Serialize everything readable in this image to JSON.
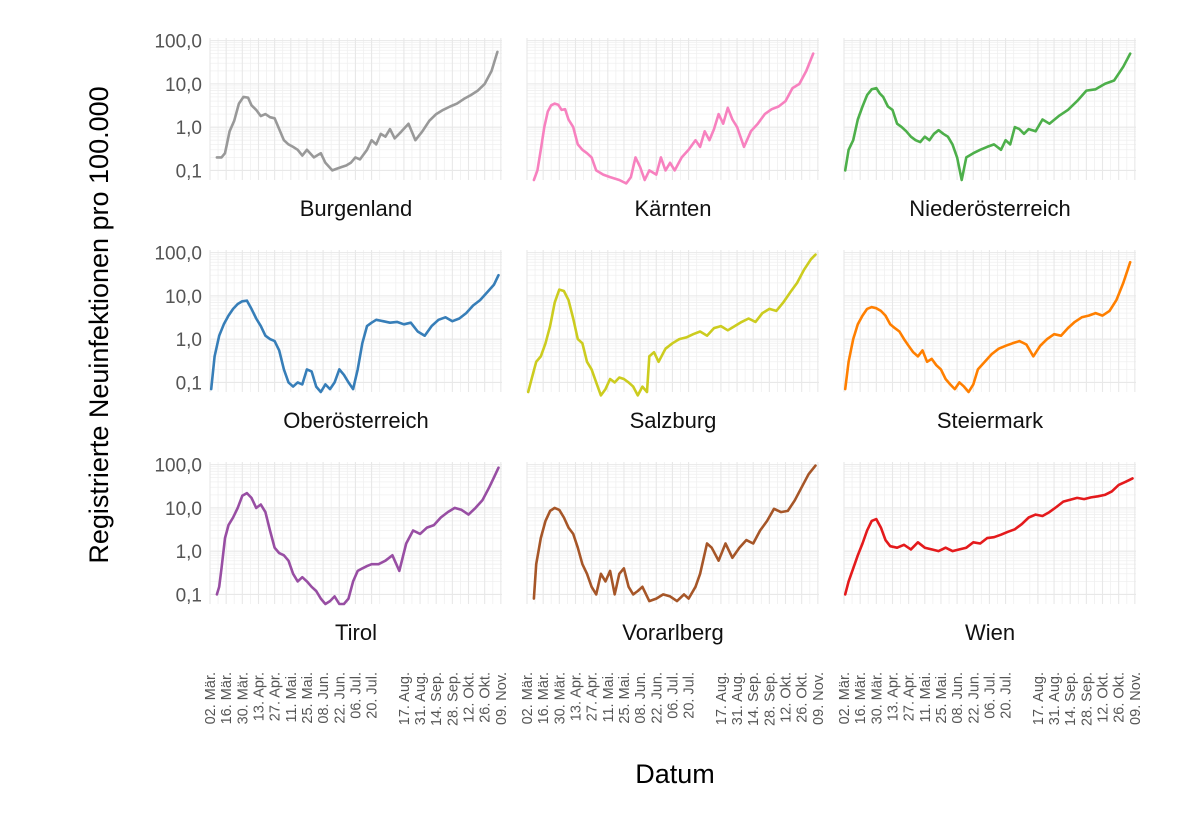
{
  "chart_data": {
    "type": "line",
    "facet": "small-multiples",
    "ylabel": "Registrierte Neuinfektionen pro 100.000",
    "xlabel": "Datum",
    "yscale": "log10",
    "ylim": [
      0.06,
      115
    ],
    "y_ticks": [
      0.1,
      1,
      10,
      100
    ],
    "y_tick_labels": [
      "0,1",
      "1,0",
      "10,0",
      "100,0"
    ],
    "x_range": [
      0,
      253
    ],
    "x_ticks": [
      {
        "day": 0,
        "label": "02. Mär."
      },
      {
        "day": 14,
        "label": "16. Mär."
      },
      {
        "day": 28,
        "label": "30. Mär."
      },
      {
        "day": 42,
        "label": "13. Apr."
      },
      {
        "day": 56,
        "label": "27. Apr."
      },
      {
        "day": 70,
        "label": "11. Mai."
      },
      {
        "day": 84,
        "label": "25. Mai."
      },
      {
        "day": 98,
        "label": "08. Jun."
      },
      {
        "day": 112,
        "label": "22. Jun."
      },
      {
        "day": 126,
        "label": "06. Jul."
      },
      {
        "day": 140,
        "label": "20. Jul."
      },
      {
        "day": 168,
        "label": "17. Aug."
      },
      {
        "day": 182,
        "label": "31. Aug."
      },
      {
        "day": 196,
        "label": "14. Sep."
      },
      {
        "day": 210,
        "label": "28. Sep."
      },
      {
        "day": 224,
        "label": "12. Okt."
      },
      {
        "day": 238,
        "label": "26. Okt."
      },
      {
        "day": 252,
        "label": "09. Nov."
      }
    ],
    "series": [
      {
        "name": "Burgenland",
        "color": "#999999",
        "x": [
          6,
          10,
          13,
          17,
          21,
          25,
          29,
          33,
          36,
          40,
          44,
          48,
          52,
          56,
          60,
          64,
          68,
          72,
          76,
          80,
          84,
          90,
          96,
          100,
          106,
          110,
          114,
          118,
          122,
          126,
          130,
          136,
          140,
          144,
          148,
          152,
          156,
          160,
          166,
          172,
          178,
          184,
          190,
          196,
          202,
          208,
          214,
          220,
          226,
          232,
          238,
          244,
          249
        ],
        "y": [
          0.2,
          0.2,
          0.25,
          0.8,
          1.4,
          3.5,
          5,
          4.8,
          3.2,
          2.5,
          1.8,
          2,
          1.7,
          1.6,
          0.9,
          0.5,
          0.4,
          0.35,
          0.3,
          0.22,
          0.3,
          0.2,
          0.25,
          0.15,
          0.1,
          0.11,
          0.12,
          0.13,
          0.15,
          0.2,
          0.18,
          0.3,
          0.5,
          0.4,
          0.7,
          0.6,
          0.9,
          0.55,
          0.8,
          1.2,
          0.5,
          0.8,
          1.4,
          2,
          2.5,
          3,
          3.5,
          4.5,
          5.5,
          7,
          10,
          20,
          55
        ]
      },
      {
        "name": "Kärnten",
        "color": "#F781BF",
        "x": [
          6,
          9,
          12,
          15,
          18,
          21,
          24,
          27,
          30,
          33,
          36,
          40,
          44,
          48,
          52,
          56,
          60,
          66,
          72,
          80,
          86,
          90,
          94,
          98,
          102,
          106,
          112,
          116,
          120,
          124,
          128,
          134,
          140,
          146,
          150,
          154,
          158,
          162,
          166,
          170,
          174,
          178,
          182,
          188,
          194,
          200,
          206,
          212,
          218,
          224,
          230,
          236,
          242,
          248
        ],
        "y": [
          0.06,
          0.1,
          0.3,
          1,
          2.3,
          3.2,
          3.5,
          3.3,
          2.5,
          2.6,
          1.5,
          1,
          0.4,
          0.3,
          0.25,
          0.2,
          0.1,
          0.08,
          0.07,
          0.06,
          0.05,
          0.07,
          0.2,
          0.12,
          0.06,
          0.1,
          0.08,
          0.2,
          0.1,
          0.15,
          0.1,
          0.2,
          0.3,
          0.5,
          0.35,
          0.8,
          0.5,
          0.9,
          2,
          1.2,
          2.8,
          1.5,
          1,
          0.35,
          0.8,
          1.2,
          2,
          2.6,
          3,
          4,
          8,
          10,
          20,
          50
        ]
      },
      {
        "name": "Niederösterreich",
        "color": "#4DAF4A",
        "x": [
          1,
          4,
          8,
          12,
          16,
          20,
          24,
          28,
          31,
          34,
          38,
          42,
          46,
          50,
          54,
          58,
          62,
          66,
          70,
          74,
          78,
          82,
          86,
          90,
          94,
          98,
          102,
          106,
          112,
          118,
          124,
          130,
          136,
          140,
          144,
          148,
          152,
          156,
          160,
          166,
          172,
          178,
          186,
          194,
          202,
          210,
          218,
          226,
          234,
          242,
          248
        ],
        "y": [
          0.1,
          0.3,
          0.5,
          1.5,
          3,
          5.5,
          7.5,
          8,
          6,
          5,
          3,
          2.5,
          1.2,
          1,
          0.8,
          0.6,
          0.5,
          0.45,
          0.6,
          0.5,
          0.7,
          0.85,
          0.7,
          0.6,
          0.4,
          0.2,
          0.06,
          0.2,
          0.25,
          0.3,
          0.35,
          0.4,
          0.3,
          0.5,
          0.4,
          1,
          0.9,
          0.7,
          0.9,
          0.8,
          1.5,
          1.2,
          1.8,
          2.5,
          4,
          7,
          7.5,
          10,
          12,
          25,
          50
        ]
      },
      {
        "name": "Oberösterreich",
        "color": "#377EB8",
        "x": [
          1,
          4,
          8,
          12,
          16,
          20,
          24,
          28,
          32,
          36,
          40,
          44,
          48,
          52,
          56,
          60,
          64,
          68,
          72,
          76,
          80,
          84,
          88,
          92,
          96,
          100,
          104,
          108,
          112,
          116,
          120,
          124,
          128,
          132,
          136,
          140,
          144,
          150,
          156,
          162,
          168,
          174,
          180,
          186,
          192,
          198,
          204,
          210,
          216,
          222,
          228,
          234,
          240,
          246,
          250
        ],
        "y": [
          0.07,
          0.4,
          1.2,
          2.2,
          3.5,
          5,
          6.5,
          7.5,
          7.8,
          5,
          3,
          2,
          1.2,
          1,
          0.9,
          0.55,
          0.2,
          0.1,
          0.08,
          0.1,
          0.09,
          0.2,
          0.18,
          0.08,
          0.06,
          0.09,
          0.07,
          0.1,
          0.2,
          0.15,
          0.1,
          0.07,
          0.2,
          0.8,
          2,
          2.4,
          2.8,
          2.6,
          2.4,
          2.5,
          2.2,
          2.4,
          1.5,
          1.2,
          2,
          2.8,
          3.2,
          2.6,
          3,
          4,
          6,
          8,
          12,
          18,
          30
        ]
      },
      {
        "name": "Salzburg",
        "color": "#CCCC1F",
        "x": [
          1,
          4,
          8,
          12,
          16,
          20,
          24,
          28,
          32,
          36,
          40,
          44,
          48,
          52,
          56,
          60,
          64,
          68,
          72,
          76,
          80,
          84,
          88,
          92,
          96,
          100,
          104,
          106,
          110,
          114,
          120,
          126,
          132,
          138,
          144,
          150,
          156,
          162,
          168,
          174,
          180,
          186,
          192,
          198,
          204,
          210,
          216,
          222,
          228,
          234,
          240,
          246,
          250
        ],
        "y": [
          0.06,
          0.12,
          0.3,
          0.4,
          0.8,
          2,
          7,
          14,
          13,
          8,
          3,
          1,
          0.8,
          0.3,
          0.2,
          0.1,
          0.05,
          0.07,
          0.12,
          0.1,
          0.13,
          0.12,
          0.1,
          0.08,
          0.05,
          0.08,
          0.06,
          0.4,
          0.5,
          0.3,
          0.6,
          0.8,
          1,
          1.1,
          1.3,
          1.5,
          1.2,
          1.8,
          2,
          1.6,
          2,
          2.5,
          3,
          2.5,
          4,
          5,
          4.5,
          7,
          12,
          20,
          40,
          70,
          90
        ]
      },
      {
        "name": "Steiermark",
        "color": "#FF7F00",
        "x": [
          1,
          4,
          8,
          12,
          16,
          20,
          24,
          28,
          32,
          36,
          40,
          44,
          48,
          52,
          56,
          60,
          64,
          68,
          72,
          76,
          80,
          84,
          88,
          92,
          96,
          100,
          104,
          108,
          112,
          116,
          122,
          128,
          134,
          140,
          146,
          152,
          158,
          164,
          170,
          176,
          182,
          188,
          194,
          200,
          206,
          212,
          218,
          224,
          230,
          236,
          242,
          248
        ],
        "y": [
          0.07,
          0.3,
          1,
          2.2,
          3.5,
          5,
          5.5,
          5.2,
          4.5,
          3.5,
          2.2,
          1.8,
          1.5,
          1,
          0.7,
          0.5,
          0.4,
          0.55,
          0.3,
          0.35,
          0.25,
          0.2,
          0.12,
          0.09,
          0.07,
          0.1,
          0.08,
          0.06,
          0.09,
          0.2,
          0.3,
          0.45,
          0.6,
          0.7,
          0.8,
          0.9,
          0.75,
          0.4,
          0.7,
          1,
          1.3,
          1.2,
          1.8,
          2.5,
          3.2,
          3.5,
          4,
          3.5,
          4.5,
          8,
          20,
          60
        ]
      },
      {
        "name": "Tirol",
        "color": "#984EA3",
        "x": [
          6,
          8,
          10,
          13,
          16,
          20,
          24,
          28,
          32,
          36,
          40,
          44,
          48,
          52,
          56,
          60,
          64,
          68,
          72,
          76,
          80,
          84,
          88,
          92,
          96,
          100,
          104,
          108,
          112,
          116,
          120,
          124,
          128,
          132,
          136,
          140,
          146,
          152,
          158,
          164,
          170,
          176,
          182,
          188,
          194,
          200,
          206,
          212,
          218,
          224,
          230,
          236,
          242,
          246,
          250
        ],
        "y": [
          0.1,
          0.15,
          0.4,
          2,
          4,
          6,
          10,
          19,
          22,
          17,
          10,
          12,
          8,
          3,
          1.2,
          0.9,
          0.8,
          0.6,
          0.3,
          0.2,
          0.25,
          0.2,
          0.15,
          0.12,
          0.08,
          0.06,
          0.07,
          0.09,
          0.06,
          0.06,
          0.08,
          0.2,
          0.35,
          0.4,
          0.45,
          0.5,
          0.5,
          0.6,
          0.8,
          0.35,
          1.5,
          3,
          2.5,
          3.5,
          4,
          6,
          8,
          10,
          9,
          7,
          10,
          15,
          30,
          50,
          85
        ]
      },
      {
        "name": "Vorarlberg",
        "color": "#A65628",
        "x": [
          6,
          8,
          12,
          16,
          20,
          24,
          28,
          32,
          36,
          40,
          44,
          48,
          52,
          56,
          60,
          64,
          68,
          72,
          76,
          80,
          84,
          88,
          92,
          96,
          100,
          106,
          112,
          118,
          124,
          130,
          136,
          140,
          146,
          150,
          156,
          160,
          166,
          172,
          178,
          184,
          190,
          196,
          202,
          208,
          214,
          220,
          226,
          232,
          238,
          244,
          250
        ],
        "y": [
          0.08,
          0.5,
          2,
          5,
          8.5,
          10,
          9,
          6,
          3.5,
          2.5,
          1.2,
          0.5,
          0.3,
          0.15,
          0.1,
          0.3,
          0.2,
          0.35,
          0.1,
          0.3,
          0.4,
          0.15,
          0.1,
          0.12,
          0.15,
          0.07,
          0.08,
          0.1,
          0.09,
          0.07,
          0.1,
          0.08,
          0.15,
          0.3,
          1.5,
          1.2,
          0.6,
          1.5,
          0.7,
          1.2,
          1.8,
          1.5,
          3,
          5,
          9.5,
          8,
          8.5,
          15,
          30,
          60,
          95
        ]
      },
      {
        "name": "Wien",
        "color": "#E41A1C",
        "x": [
          1,
          4,
          8,
          12,
          16,
          20,
          24,
          28,
          32,
          36,
          40,
          46,
          52,
          58,
          64,
          70,
          76,
          82,
          88,
          94,
          100,
          106,
          112,
          118,
          124,
          130,
          136,
          142,
          148,
          154,
          160,
          166,
          172,
          178,
          184,
          190,
          196,
          202,
          208,
          214,
          220,
          226,
          232,
          238,
          244,
          250
        ],
        "y": [
          0.1,
          0.2,
          0.4,
          0.8,
          1.5,
          3,
          5,
          5.5,
          3.5,
          1.8,
          1.3,
          1.2,
          1.4,
          1.1,
          1.6,
          1.2,
          1.1,
          1,
          1.2,
          1,
          1.1,
          1.2,
          1.6,
          1.5,
          2,
          2.1,
          2.4,
          2.8,
          3.2,
          4.2,
          6,
          7,
          6.5,
          8,
          10.5,
          14,
          15.5,
          17,
          16,
          17.5,
          18.5,
          20,
          24,
          34,
          40,
          48
        ]
      }
    ]
  }
}
